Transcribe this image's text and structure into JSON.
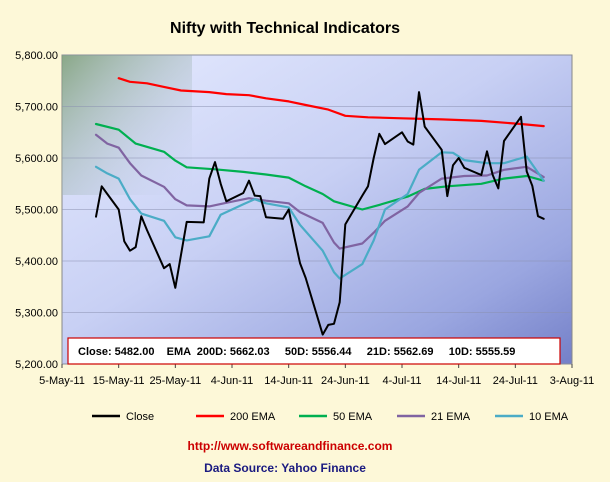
{
  "chart_data": {
    "type": "line",
    "title": "Nifty with Technical Indicators",
    "ylim": [
      5200,
      5800
    ],
    "y_ticks": [
      "5,200.00",
      "5,300.00",
      "5,400.00",
      "5,500.00",
      "5,600.00",
      "5,700.00",
      "5,800.00"
    ],
    "y_tick_values": [
      5200,
      5300,
      5400,
      5500,
      5600,
      5700,
      5800
    ],
    "xlim": [
      "2011-05-05",
      "2011-08-03"
    ],
    "x_ticks": [
      "5-May-11",
      "15-May-11",
      "25-May-11",
      "4-Jun-11",
      "14-Jun-11",
      "24-Jun-11",
      "4-Jul-11",
      "14-Jul-11",
      "24-Jul-11",
      "3-Aug-11"
    ],
    "x_tick_values": [
      "2011-05-05",
      "2011-05-15",
      "2011-05-25",
      "2011-06-04",
      "2011-06-14",
      "2011-06-24",
      "2011-07-04",
      "2011-07-14",
      "2011-07-24",
      "2011-08-03"
    ],
    "grid": true,
    "legend_position": "bottom",
    "info_box": "Close: 5482.00    EMA  200D: 5662.03     50D: 5556.44     21D: 5562.69     10D: 5555.59",
    "series": [
      {
        "name": "Close",
        "color": "#000000",
        "points": [
          [
            "2011-05-11",
            5486
          ],
          [
            "2011-05-12",
            5545
          ],
          [
            "2011-05-13",
            5530
          ],
          [
            "2011-05-15",
            5500
          ],
          [
            "2011-05-16",
            5438
          ],
          [
            "2011-05-17",
            5420
          ],
          [
            "2011-05-18",
            5427
          ],
          [
            "2011-05-19",
            5487
          ],
          [
            "2011-05-20",
            5460
          ],
          [
            "2011-05-23",
            5386
          ],
          [
            "2011-05-24",
            5394
          ],
          [
            "2011-05-25",
            5348
          ],
          [
            "2011-05-26",
            5412
          ],
          [
            "2011-05-27",
            5476
          ],
          [
            "2011-05-30",
            5475
          ],
          [
            "2011-05-31",
            5560
          ],
          [
            "2011-06-01",
            5592
          ],
          [
            "2011-06-02",
            5550
          ],
          [
            "2011-06-03",
            5516
          ],
          [
            "2011-06-06",
            5532
          ],
          [
            "2011-06-07",
            5556
          ],
          [
            "2011-06-08",
            5527
          ],
          [
            "2011-06-09",
            5526
          ],
          [
            "2011-06-10",
            5485
          ],
          [
            "2011-06-13",
            5482
          ],
          [
            "2011-06-14",
            5500
          ],
          [
            "2011-06-15",
            5447
          ],
          [
            "2011-06-16",
            5396
          ],
          [
            "2011-06-17",
            5367
          ],
          [
            "2011-06-20",
            5257
          ],
          [
            "2011-06-21",
            5276
          ],
          [
            "2011-06-22",
            5278
          ],
          [
            "2011-06-23",
            5320
          ],
          [
            "2011-06-24",
            5471
          ],
          [
            "2011-06-27",
            5527
          ],
          [
            "2011-06-28",
            5545
          ],
          [
            "2011-06-29",
            5600
          ],
          [
            "2011-06-30",
            5647
          ],
          [
            "2011-07-01",
            5627
          ],
          [
            "2011-07-04",
            5650
          ],
          [
            "2011-07-05",
            5632
          ],
          [
            "2011-07-06",
            5626
          ],
          [
            "2011-07-07",
            5728
          ],
          [
            "2011-07-08",
            5661
          ],
          [
            "2011-07-11",
            5616
          ],
          [
            "2011-07-12",
            5526
          ],
          [
            "2011-07-13",
            5586
          ],
          [
            "2011-07-14",
            5600
          ],
          [
            "2011-07-15",
            5581
          ],
          [
            "2011-07-18",
            5567
          ],
          [
            "2011-07-19",
            5613
          ],
          [
            "2011-07-20",
            5567
          ],
          [
            "2011-07-21",
            5541
          ],
          [
            "2011-07-22",
            5633
          ],
          [
            "2011-07-25",
            5680
          ],
          [
            "2011-07-26",
            5574
          ],
          [
            "2011-07-27",
            5546
          ],
          [
            "2011-07-28",
            5487
          ],
          [
            "2011-07-29",
            5482
          ]
        ]
      },
      {
        "name": "200 EMA",
        "color": "#ff0000",
        "points": [
          [
            "2011-05-15",
            5755
          ],
          [
            "2011-05-17",
            5748
          ],
          [
            "2011-05-20",
            5745
          ],
          [
            "2011-05-23",
            5738
          ],
          [
            "2011-05-26",
            5731
          ],
          [
            "2011-05-31",
            5728
          ],
          [
            "2011-06-03",
            5724
          ],
          [
            "2011-06-07",
            5722
          ],
          [
            "2011-06-10",
            5716
          ],
          [
            "2011-06-14",
            5710
          ],
          [
            "2011-06-17",
            5703
          ],
          [
            "2011-06-21",
            5694
          ],
          [
            "2011-06-24",
            5682
          ],
          [
            "2011-06-28",
            5679
          ],
          [
            "2011-07-04",
            5677
          ],
          [
            "2011-07-11",
            5675
          ],
          [
            "2011-07-18",
            5672
          ],
          [
            "2011-07-25",
            5666
          ],
          [
            "2011-07-29",
            5662
          ]
        ]
      },
      {
        "name": "50 EMA",
        "color": "#00b050",
        "points": [
          [
            "2011-05-11",
            5666
          ],
          [
            "2011-05-15",
            5655
          ],
          [
            "2011-05-18",
            5628
          ],
          [
            "2011-05-23",
            5612
          ],
          [
            "2011-05-25",
            5595
          ],
          [
            "2011-05-27",
            5582
          ],
          [
            "2011-06-01",
            5578
          ],
          [
            "2011-06-06",
            5573
          ],
          [
            "2011-06-10",
            5568
          ],
          [
            "2011-06-14",
            5562
          ],
          [
            "2011-06-17",
            5545
          ],
          [
            "2011-06-20",
            5530
          ],
          [
            "2011-06-22",
            5516
          ],
          [
            "2011-06-27",
            5500
          ],
          [
            "2011-06-30",
            5509
          ],
          [
            "2011-07-05",
            5525
          ],
          [
            "2011-07-08",
            5540
          ],
          [
            "2011-07-12",
            5545
          ],
          [
            "2011-07-18",
            5550
          ],
          [
            "2011-07-22",
            5560
          ],
          [
            "2011-07-26",
            5565
          ],
          [
            "2011-07-29",
            5556
          ]
        ]
      },
      {
        "name": "21 EMA",
        "color": "#8064a2",
        "points": [
          [
            "2011-05-11",
            5645
          ],
          [
            "2011-05-13",
            5628
          ],
          [
            "2011-05-15",
            5620
          ],
          [
            "2011-05-17",
            5590
          ],
          [
            "2011-05-19",
            5566
          ],
          [
            "2011-05-23",
            5544
          ],
          [
            "2011-05-25",
            5520
          ],
          [
            "2011-05-27",
            5508
          ],
          [
            "2011-05-31",
            5506
          ],
          [
            "2011-06-03",
            5513
          ],
          [
            "2011-06-07",
            5522
          ],
          [
            "2011-06-10",
            5517
          ],
          [
            "2011-06-14",
            5512
          ],
          [
            "2011-06-16",
            5495
          ],
          [
            "2011-06-20",
            5474
          ],
          [
            "2011-06-22",
            5436
          ],
          [
            "2011-06-23",
            5424
          ],
          [
            "2011-06-27",
            5434
          ],
          [
            "2011-06-29",
            5455
          ],
          [
            "2011-07-01",
            5478
          ],
          [
            "2011-07-05",
            5506
          ],
          [
            "2011-07-07",
            5532
          ],
          [
            "2011-07-11",
            5560
          ],
          [
            "2011-07-15",
            5565
          ],
          [
            "2011-07-19",
            5566
          ],
          [
            "2011-07-22",
            5577
          ],
          [
            "2011-07-26",
            5583
          ],
          [
            "2011-07-29",
            5563
          ]
        ]
      },
      {
        "name": "10 EMA",
        "color": "#4bacc6",
        "points": [
          [
            "2011-05-11",
            5583
          ],
          [
            "2011-05-13",
            5570
          ],
          [
            "2011-05-15",
            5560
          ],
          [
            "2011-05-17",
            5520
          ],
          [
            "2011-05-19",
            5492
          ],
          [
            "2011-05-23",
            5478
          ],
          [
            "2011-05-25",
            5446
          ],
          [
            "2011-05-27",
            5440
          ],
          [
            "2011-05-31",
            5448
          ],
          [
            "2011-06-02",
            5490
          ],
          [
            "2011-06-06",
            5510
          ],
          [
            "2011-06-08",
            5520
          ],
          [
            "2011-06-10",
            5512
          ],
          [
            "2011-06-14",
            5504
          ],
          [
            "2011-06-16",
            5470
          ],
          [
            "2011-06-20",
            5420
          ],
          [
            "2011-06-22",
            5378
          ],
          [
            "2011-06-23",
            5366
          ],
          [
            "2011-06-27",
            5394
          ],
          [
            "2011-06-29",
            5440
          ],
          [
            "2011-07-01",
            5500
          ],
          [
            "2011-07-05",
            5530
          ],
          [
            "2011-07-07",
            5577
          ],
          [
            "2011-07-11",
            5611
          ],
          [
            "2011-07-13",
            5610
          ],
          [
            "2011-07-15",
            5596
          ],
          [
            "2011-07-19",
            5590
          ],
          [
            "2011-07-22",
            5590
          ],
          [
            "2011-07-26",
            5603
          ],
          [
            "2011-07-29",
            5556
          ]
        ]
      }
    ]
  },
  "footer": {
    "url": "http://www.softwareandfinance.com",
    "source": "Data Source: Yahoo Finance"
  }
}
